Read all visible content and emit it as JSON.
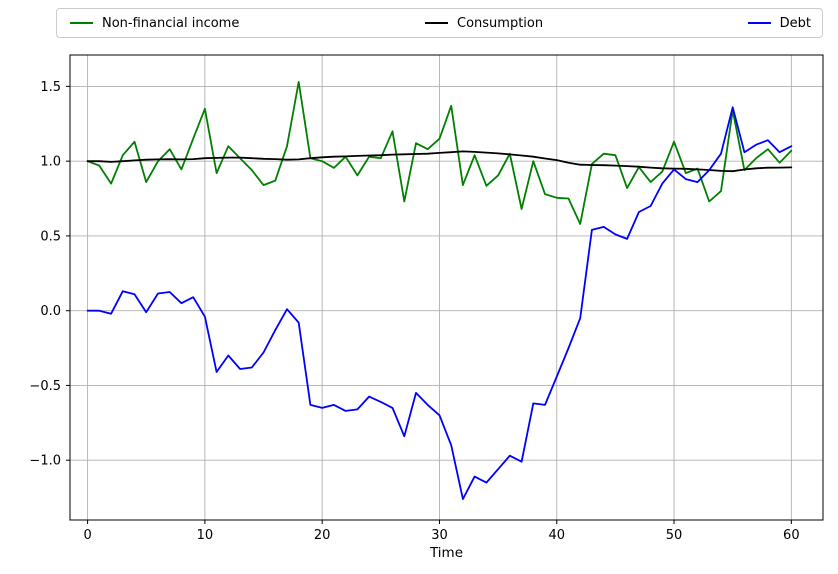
{
  "chart_data": {
    "type": "line",
    "title": "",
    "xlabel": "Time",
    "ylabel": "",
    "grid": true,
    "grid_color": "#b0b0b0",
    "background_color": "#ffffff",
    "legend_position": "top-expand",
    "xlim": [
      -1.5,
      62.7
    ],
    "ylim": [
      -1.4,
      1.71
    ],
    "xticks": [
      0,
      10,
      20,
      30,
      40,
      50,
      60
    ],
    "xticklabels": [
      "0",
      "10",
      "20",
      "30",
      "40",
      "50",
      "60"
    ],
    "yticks": [
      1.5,
      1.0,
      0.5,
      0.0,
      -0.5,
      -1.0
    ],
    "yticklabels": [
      "1.5",
      "1.0",
      "0.5",
      "0.0",
      "−0.5",
      "−1.0"
    ],
    "x": [
      0,
      1,
      2,
      3,
      4,
      5,
      6,
      7,
      8,
      9,
      10,
      11,
      12,
      13,
      14,
      15,
      16,
      17,
      18,
      19,
      20,
      21,
      22,
      23,
      24,
      25,
      26,
      27,
      28,
      29,
      30,
      31,
      32,
      33,
      34,
      35,
      36,
      37,
      38,
      39,
      40,
      41,
      42,
      43,
      44,
      45,
      46,
      47,
      48,
      49,
      50,
      51,
      52,
      53,
      54,
      55,
      56,
      57,
      58,
      59,
      60
    ],
    "series": [
      {
        "name": "Non-financial income",
        "color": "#008000",
        "values": [
          1.0,
          0.97,
          0.85,
          1.04,
          1.13,
          0.86,
          1.0,
          1.08,
          0.945,
          1.15,
          1.35,
          0.92,
          1.1,
          1.02,
          0.94,
          0.84,
          0.87,
          1.1,
          1.53,
          1.02,
          1.0,
          0.955,
          1.03,
          0.905,
          1.03,
          1.02,
          1.2,
          0.73,
          1.12,
          1.08,
          1.15,
          1.37,
          0.84,
          1.04,
          0.835,
          0.905,
          1.05,
          0.68,
          1.0,
          0.78,
          0.755,
          0.75,
          0.58,
          0.98,
          1.05,
          1.04,
          0.82,
          0.96,
          0.86,
          0.93,
          1.13,
          0.92,
          0.95,
          0.73,
          0.8,
          1.34,
          0.94,
          1.02,
          1.08,
          0.99,
          1.07
        ]
      },
      {
        "name": "Consumption",
        "color": "#000000",
        "values": [
          1.0,
          1.0,
          0.995,
          1.0,
          1.005,
          1.01,
          1.012,
          1.013,
          1.012,
          1.014,
          1.02,
          1.022,
          1.024,
          1.024,
          1.02,
          1.016,
          1.014,
          1.01,
          1.012,
          1.02,
          1.026,
          1.03,
          1.032,
          1.035,
          1.038,
          1.04,
          1.044,
          1.046,
          1.048,
          1.05,
          1.055,
          1.06,
          1.065,
          1.062,
          1.057,
          1.052,
          1.045,
          1.038,
          1.03,
          1.018,
          1.007,
          0.99,
          0.976,
          0.974,
          0.973,
          0.97,
          0.967,
          0.963,
          0.957,
          0.952,
          0.95,
          0.949,
          0.945,
          0.941,
          0.935,
          0.933,
          0.944,
          0.952,
          0.956,
          0.957,
          0.958
        ]
      },
      {
        "name": "Debt",
        "color": "#0000ff",
        "values": [
          0.0,
          0.0,
          -0.02,
          0.13,
          0.11,
          -0.01,
          0.115,
          0.125,
          0.05,
          0.09,
          -0.04,
          -0.41,
          -0.3,
          -0.39,
          -0.38,
          -0.28,
          -0.13,
          0.01,
          -0.08,
          -0.63,
          -0.65,
          -0.63,
          -0.67,
          -0.66,
          -0.575,
          -0.61,
          -0.65,
          -0.84,
          -0.55,
          -0.63,
          -0.7,
          -0.9,
          -1.26,
          -1.11,
          -1.15,
          -1.06,
          -0.97,
          -1.01,
          -0.62,
          -0.63,
          -0.44,
          -0.25,
          -0.05,
          0.54,
          0.56,
          0.51,
          0.48,
          0.66,
          0.7,
          0.85,
          0.945,
          0.88,
          0.86,
          0.94,
          1.05,
          1.36,
          1.06,
          1.11,
          1.14,
          1.06,
          1.1
        ]
      }
    ]
  }
}
